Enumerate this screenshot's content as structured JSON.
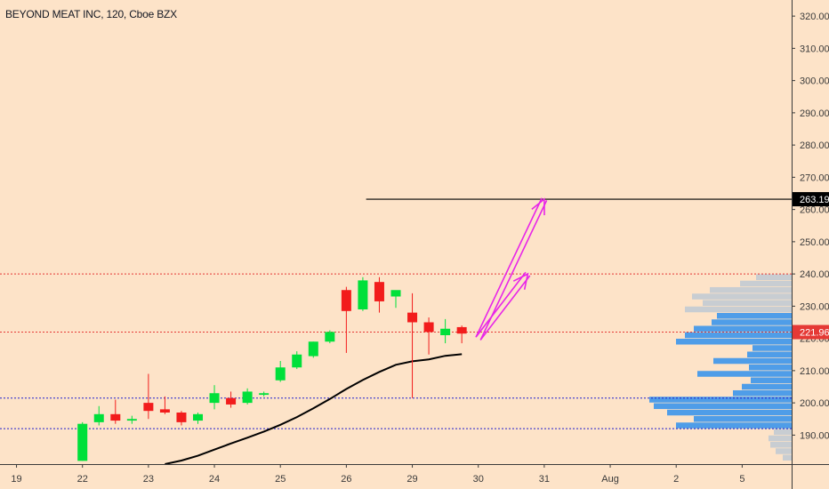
{
  "header": {
    "title": "BEYOND MEAT INC, 120, Cboe BZX"
  },
  "colors": {
    "background": "#fde3c8",
    "up": "#00e03a",
    "down": "#f21c1c",
    "ma": "#000000",
    "arrows": "#e825e8",
    "resistance": "#e53935",
    "support": "#1f1fcf",
    "volume_up": "#4f9de8",
    "volume_down": "#c8cdd2",
    "target": "#000000"
  },
  "chart_data": {
    "type": "candlestick",
    "price_axis": {
      "ticks": [
        "320.00",
        "310.00",
        "300.00",
        "290.00",
        "280.00",
        "270.00",
        "260.00",
        "250.00",
        "240.00",
        "230.00",
        "220.00",
        "210.00",
        "200.00",
        "190.00"
      ],
      "range": [
        181,
        325
      ]
    },
    "time_axis": {
      "ticks": [
        "19",
        "22",
        "23",
        "24",
        "25",
        "26",
        "29",
        "30",
        "31",
        "Aug",
        "2",
        "5"
      ],
      "slot_range": [
        -1.5,
        22.5
      ],
      "tick_slots": [
        -1,
        1,
        3,
        5,
        7,
        9,
        11,
        13,
        15,
        17,
        19,
        21
      ]
    },
    "candles": [
      {
        "slot": 1.0,
        "o": 182,
        "h": 194,
        "l": 182,
        "c": 193.5
      },
      {
        "slot": 1.5,
        "o": 194,
        "h": 199,
        "l": 193,
        "c": 196.5
      },
      {
        "slot": 2.0,
        "o": 196.5,
        "h": 201,
        "l": 193.5,
        "c": 194.5
      },
      {
        "slot": 2.5,
        "o": 194.5,
        "h": 196,
        "l": 193.5,
        "c": 195
      },
      {
        "slot": 3.0,
        "o": 200,
        "h": 209,
        "l": 195,
        "c": 197.5
      },
      {
        "slot": 3.5,
        "o": 198,
        "h": 202,
        "l": 196.5,
        "c": 197
      },
      {
        "slot": 4.0,
        "o": 197,
        "h": 197.5,
        "l": 193,
        "c": 194
      },
      {
        "slot": 4.5,
        "o": 194.5,
        "h": 197,
        "l": 193.5,
        "c": 196.5
      },
      {
        "slot": 5.0,
        "o": 200,
        "h": 205.5,
        "l": 198,
        "c": 203
      },
      {
        "slot": 5.5,
        "o": 201.5,
        "h": 203.5,
        "l": 198.5,
        "c": 199.5
      },
      {
        "slot": 6.0,
        "o": 200,
        "h": 204.5,
        "l": 199.5,
        "c": 203.5
      },
      {
        "slot": 6.5,
        "o": 202.5,
        "h": 203.5,
        "l": 202,
        "c": 203
      },
      {
        "slot": 7.0,
        "o": 207,
        "h": 213,
        "l": 206.5,
        "c": 211
      },
      {
        "slot": 7.5,
        "o": 211,
        "h": 216,
        "l": 210.5,
        "c": 215
      },
      {
        "slot": 8.0,
        "o": 214.5,
        "h": 219,
        "l": 214,
        "c": 219
      },
      {
        "slot": 8.5,
        "o": 219,
        "h": 222.5,
        "l": 218.5,
        "c": 222
      },
      {
        "slot": 9.0,
        "o": 235,
        "h": 236,
        "l": 215.5,
        "c": 228.5
      },
      {
        "slot": 9.5,
        "o": 229,
        "h": 239,
        "l": 228.5,
        "c": 238
      },
      {
        "slot": 10.0,
        "o": 237.5,
        "h": 239,
        "l": 228,
        "c": 231.5
      },
      {
        "slot": 10.5,
        "o": 233,
        "h": 234.5,
        "l": 229.5,
        "c": 235
      },
      {
        "slot": 11.0,
        "o": 228,
        "h": 234,
        "l": 201.5,
        "c": 225
      },
      {
        "slot": 11.5,
        "o": 225,
        "h": 226.5,
        "l": 215,
        "c": 222
      },
      {
        "slot": 12.0,
        "o": 221,
        "h": 226,
        "l": 218.5,
        "c": 223
      },
      {
        "slot": 12.5,
        "o": 223.5,
        "h": 224,
        "l": 218.5,
        "c": 221.5
      }
    ],
    "moving_average": [
      {
        "slot": 3.5,
        "v": 181
      },
      {
        "slot": 4.0,
        "v": 182.1
      },
      {
        "slot": 4.5,
        "v": 183.6
      },
      {
        "slot": 5.0,
        "v": 185.5
      },
      {
        "slot": 5.5,
        "v": 187.4
      },
      {
        "slot": 6.0,
        "v": 189.2
      },
      {
        "slot": 6.5,
        "v": 191.1
      },
      {
        "slot": 7.0,
        "v": 193.2
      },
      {
        "slot": 7.5,
        "v": 195.6
      },
      {
        "slot": 8.0,
        "v": 198.3
      },
      {
        "slot": 8.5,
        "v": 201.2
      },
      {
        "slot": 9.0,
        "v": 204.3
      },
      {
        "slot": 9.5,
        "v": 207.1
      },
      {
        "slot": 10.0,
        "v": 209.6
      },
      {
        "slot": 10.5,
        "v": 211.8
      },
      {
        "slot": 11.0,
        "v": 212.9
      },
      {
        "slot": 11.5,
        "v": 213.5
      },
      {
        "slot": 12.0,
        "v": 214.6
      },
      {
        "slot": 12.5,
        "v": 215.1
      }
    ],
    "horizontal_lines": [
      {
        "price": 240,
        "style": "dotted",
        "color": "#e53935"
      },
      {
        "price": 221.96,
        "style": "dotted",
        "color": "#e53935"
      },
      {
        "price": 201.5,
        "style": "dotted",
        "color": "#1f1fcf"
      },
      {
        "price": 192,
        "style": "dotted",
        "color": "#1f1fcf"
      }
    ],
    "target_line": {
      "price": 263.19,
      "from_slot": 9.6
    },
    "price_labels": [
      {
        "text": "263.19",
        "price": 263.19,
        "bg": "#000000"
      },
      {
        "text": "221.96",
        "price": 221.96,
        "bg": "#e53935"
      }
    ],
    "projection_arrows": [
      {
        "from": {
          "slot": 13.0,
          "price": 220
        },
        "to": {
          "slot": 15.0,
          "price": 263.19
        }
      },
      {
        "from": {
          "slot": 13.0,
          "price": 220
        },
        "to": {
          "slot": 14.5,
          "price": 240
        }
      }
    ],
    "volume_profile": [
      {
        "price": 239,
        "width": 40,
        "up": false
      },
      {
        "price": 237,
        "width": 58,
        "up": false
      },
      {
        "price": 235,
        "width": 92,
        "up": false
      },
      {
        "price": 233,
        "width": 112,
        "up": false
      },
      {
        "price": 231,
        "width": 100,
        "up": false
      },
      {
        "price": 229,
        "width": 120,
        "up": false
      },
      {
        "price": 227,
        "width": 84,
        "up": true
      },
      {
        "price": 225,
        "width": 90,
        "up": true
      },
      {
        "price": 223,
        "width": 110,
        "up": true
      },
      {
        "price": 221,
        "width": 120,
        "up": true
      },
      {
        "price": 219,
        "width": 130,
        "up": true
      },
      {
        "price": 217,
        "width": 44,
        "up": true
      },
      {
        "price": 215,
        "width": 50,
        "up": true
      },
      {
        "price": 213,
        "width": 88,
        "up": true
      },
      {
        "price": 211,
        "width": 48,
        "up": true
      },
      {
        "price": 209,
        "width": 106,
        "up": true
      },
      {
        "price": 207,
        "width": 46,
        "up": true
      },
      {
        "price": 205,
        "width": 56,
        "up": true
      },
      {
        "price": 203,
        "width": 66,
        "up": true
      },
      {
        "price": 201,
        "width": 160,
        "up": true
      },
      {
        "price": 199,
        "width": 155,
        "up": true
      },
      {
        "price": 197,
        "width": 140,
        "up": true
      },
      {
        "price": 195,
        "width": 110,
        "up": true
      },
      {
        "price": 193,
        "width": 130,
        "up": true
      },
      {
        "price": 191,
        "width": 20,
        "up": false
      },
      {
        "price": 189,
        "width": 26,
        "up": false
      },
      {
        "price": 187,
        "width": 24,
        "up": false
      },
      {
        "price": 185,
        "width": 18,
        "up": false
      },
      {
        "price": 183,
        "width": 10,
        "up": false
      }
    ]
  }
}
